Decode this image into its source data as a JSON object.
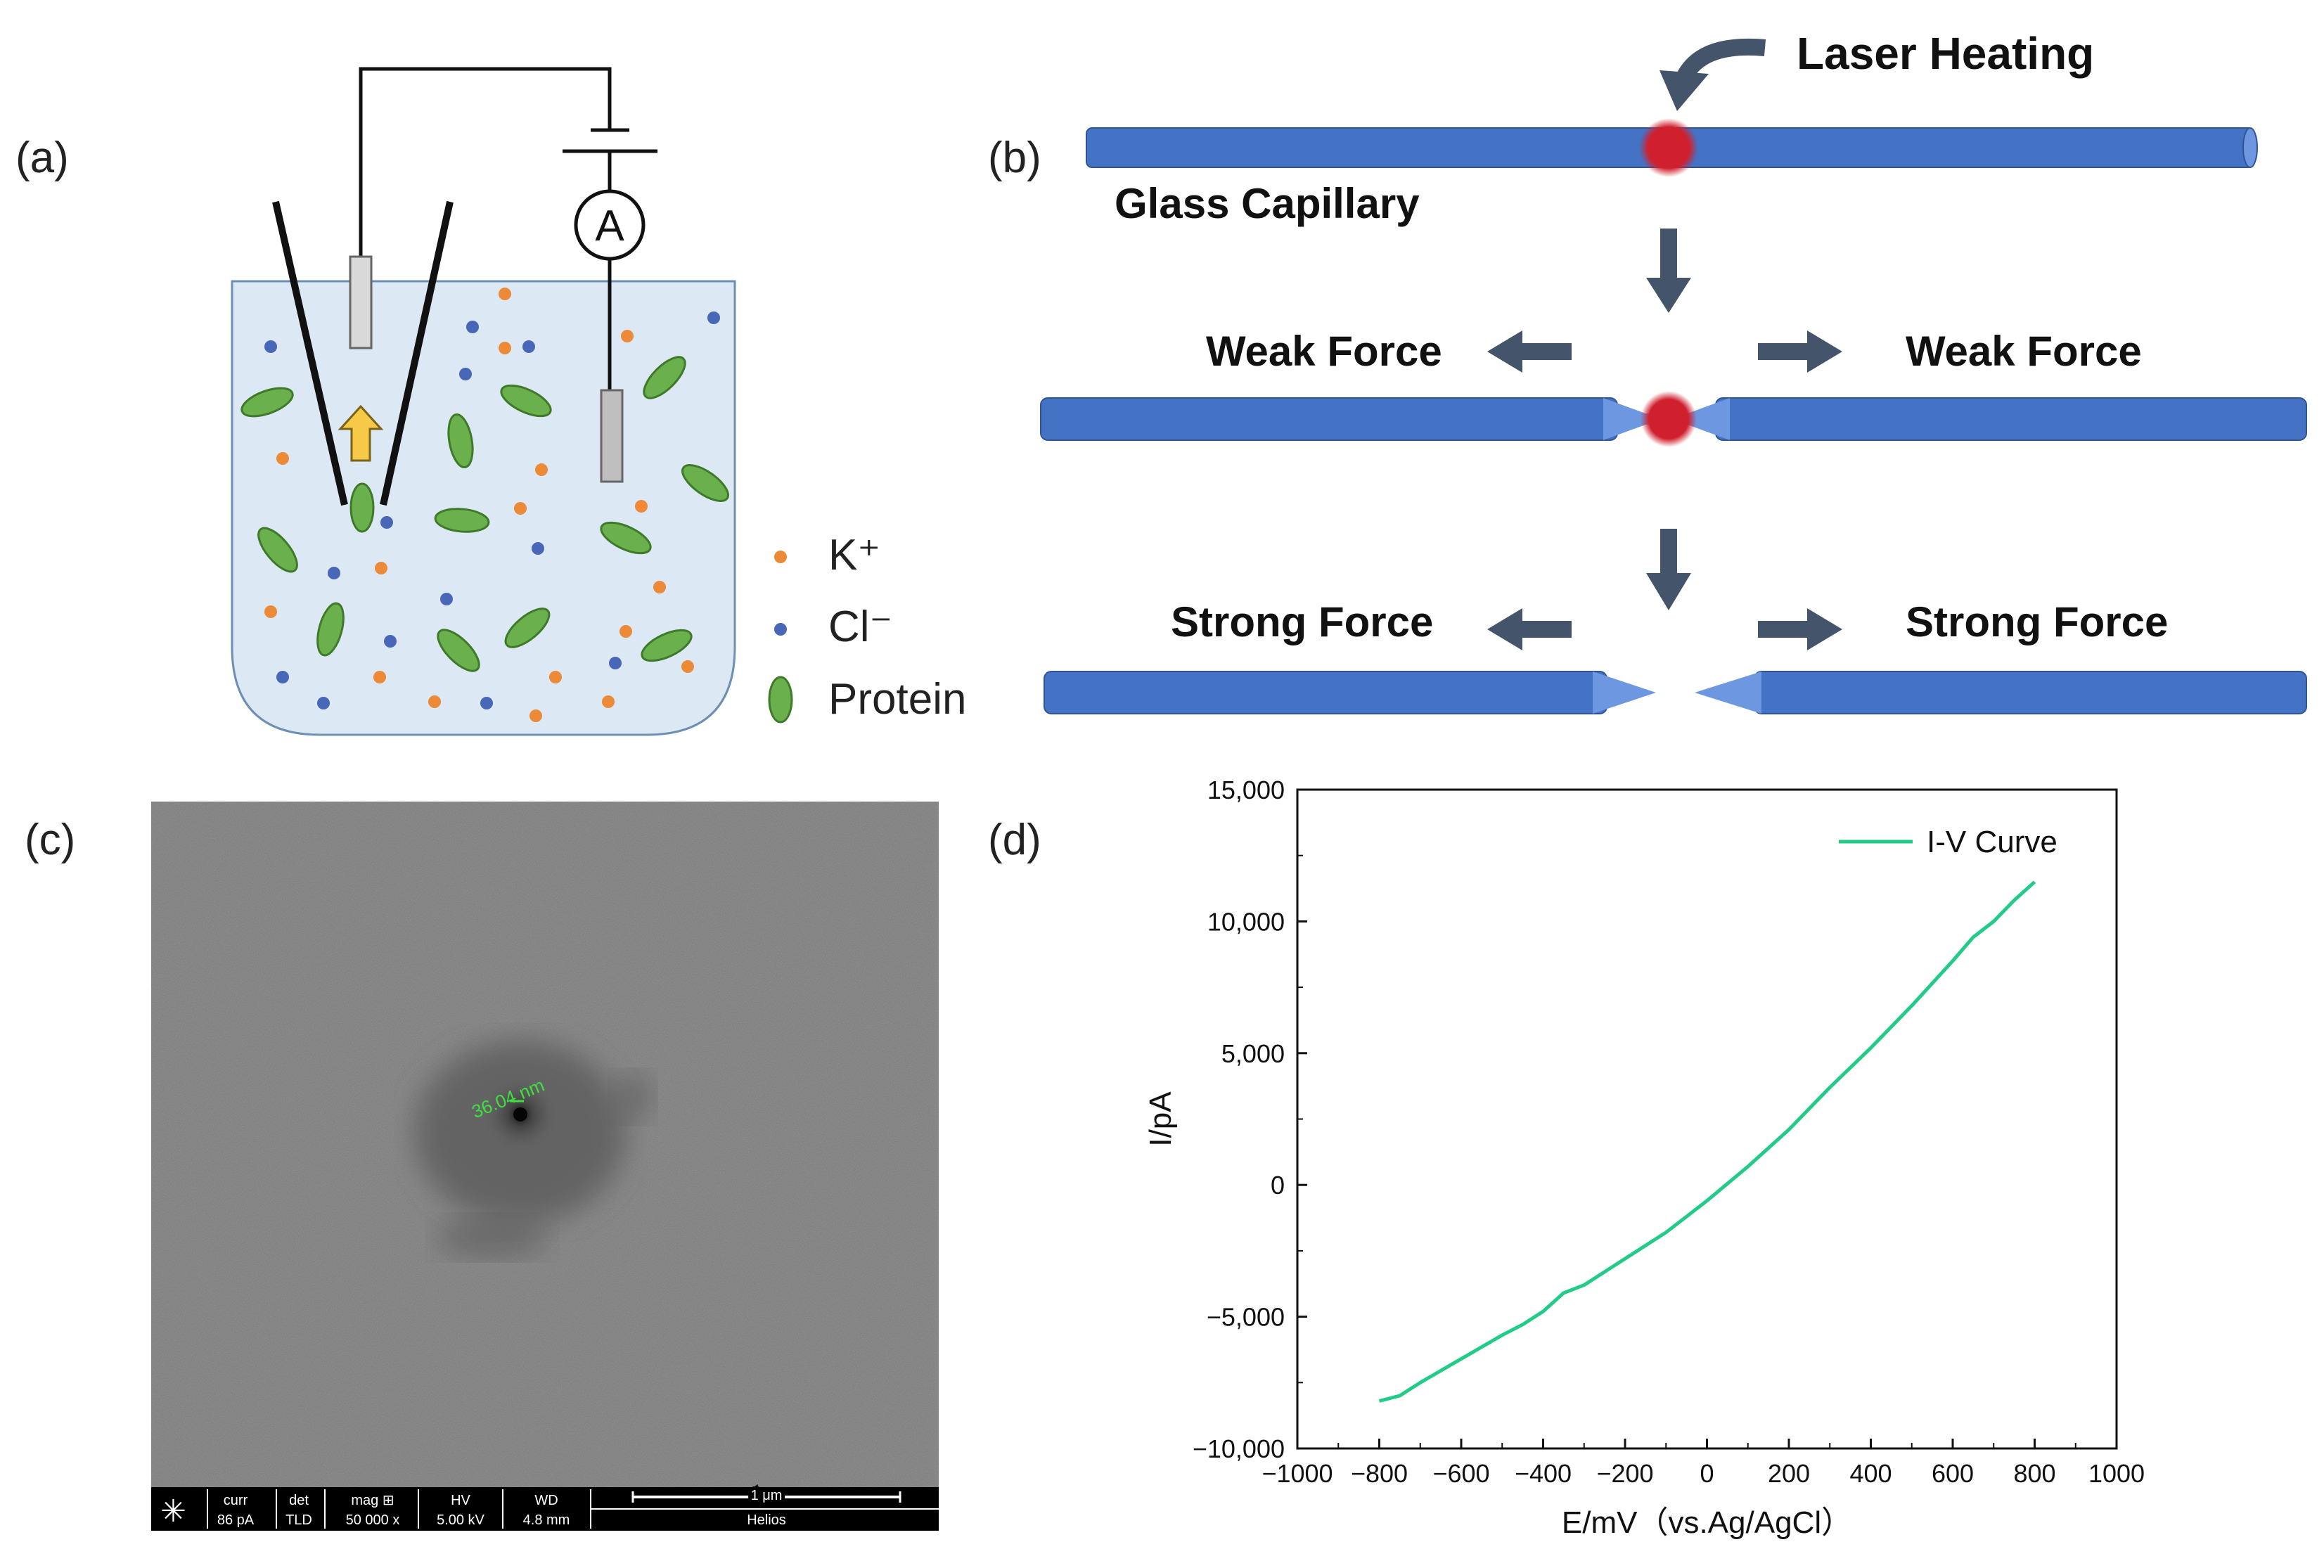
{
  "panels": {
    "a": {
      "label": "(a)",
      "meter_label": "A",
      "legend": [
        {
          "symbol": "orange-dot",
          "text": "K⁺",
          "color": "#ec8a37"
        },
        {
          "symbol": "blue-dot",
          "text": "Cl⁻",
          "color": "#4867b7"
        },
        {
          "symbol": "green-ellipse",
          "text": "Protein",
          "color": "#6ab04c"
        }
      ],
      "colors": {
        "solution": "#dce8f4",
        "protein": "#6ab04c",
        "k_ion": "#ec8a37",
        "cl_ion": "#4867b7",
        "arrow": "#f7c948"
      }
    },
    "b": {
      "label": "(b)",
      "laser_heating": "Laser Heating",
      "glass_capillary": "Glass Capillary",
      "weak_force_left": "Weak Force",
      "weak_force_right": "Weak Force",
      "strong_force_left": "Strong Force",
      "strong_force_right": "Strong Force",
      "colors": {
        "capillary": "#4472c4",
        "capillary_tip": "#6d97e0",
        "hot_spot": "#d0202e",
        "arrow": "#44546a"
      }
    },
    "c": {
      "label": "(c)",
      "measurement": "36.04 nm",
      "info_bar": {
        "curr_label": "curr",
        "curr_value": "86 pA",
        "det_label": "det",
        "det_value": "TLD",
        "mag_label": "mag ⊞",
        "mag_value": "50 000 x",
        "hv_label": "HV",
        "hv_value": "5.00 kV",
        "wd_label": "WD",
        "wd_value": "4.8 mm",
        "scale_label": "1 μm",
        "instrument": "Helios"
      }
    },
    "d": {
      "label": "(d)"
    }
  },
  "chart_data": {
    "type": "line",
    "xlabel": "E/mV（vs.Ag/AgCl）",
    "ylabel": "I/pA",
    "xlim": [
      -1000,
      1000
    ],
    "ylim": [
      -10000,
      15000
    ],
    "xticks": [
      -1000,
      -800,
      -600,
      -400,
      -200,
      0,
      200,
      400,
      600,
      800,
      1000
    ],
    "xtick_labels": [
      "−1000",
      "−800",
      "−600",
      "−400",
      "−200",
      "0",
      "200",
      "400",
      "600",
      "800",
      "1000"
    ],
    "yticks": [
      -10000,
      -5000,
      0,
      5000,
      10000,
      15000
    ],
    "ytick_labels": [
      "−10,000",
      "−5,000",
      "0",
      "5,000",
      "10,000",
      "15,000"
    ],
    "grid": false,
    "legend_position": "top-right",
    "series": [
      {
        "name": "I-V Curve",
        "color": "#22cc88",
        "x": [
          -800,
          -750,
          -700,
          -600,
          -500,
          -450,
          -400,
          -350,
          -300,
          -200,
          -100,
          0,
          100,
          200,
          300,
          400,
          500,
          600,
          650,
          700,
          750,
          800
        ],
        "y": [
          -8200,
          -8000,
          -7500,
          -6600,
          -5700,
          -5300,
          -4800,
          -4100,
          -3800,
          -2800,
          -1800,
          -600,
          700,
          2100,
          3700,
          5200,
          6800,
          8500,
          9400,
          10000,
          10800,
          11500
        ]
      }
    ]
  }
}
